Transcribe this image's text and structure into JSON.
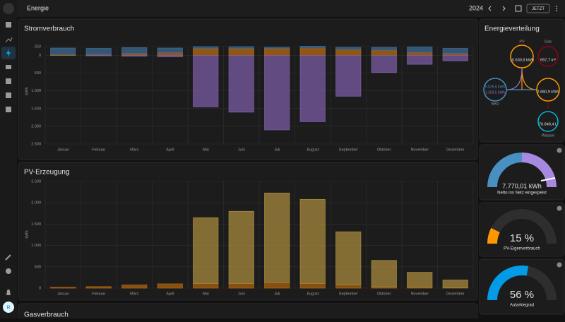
{
  "header": {
    "title": "Energie",
    "year": "2024",
    "button": "JETZT"
  },
  "user": {
    "initial": "R"
  },
  "chart_data": [
    {
      "type": "bar",
      "title": "Stromverbrauch",
      "y_label": "kWh",
      "categories": [
        "Januar",
        "Februar",
        "März",
        "April",
        "Mai",
        "Juni",
        "Juli",
        "August",
        "September",
        "Oktober",
        "November",
        "Dezember"
      ],
      "ylim": [
        -2500,
        250
      ],
      "yticks": [
        250,
        0,
        {
          "value": -500,
          "label": "500"
        },
        {
          "value": -1000,
          "label": "1.000"
        },
        {
          "value": -1500,
          "label": "1.500"
        },
        {
          "value": -2000,
          "label": "2.000"
        },
        {
          "value": -2500,
          "label": "2.500"
        }
      ],
      "grid": true,
      "series": [
        {
          "color": "#b8690f",
          "values": [
            20,
            30,
            60,
            80,
            200,
            200,
            200,
            210,
            170,
            150,
            90,
            60
          ]
        },
        {
          "color": "#3d6a93",
          "values": [
            190,
            170,
            160,
            130,
            50,
            50,
            30,
            50,
            60,
            80,
            150,
            140
          ]
        },
        {
          "color": "#7a5ba3",
          "values": [
            0,
            -10,
            -20,
            -40,
            -1450,
            -1600,
            -2100,
            -1870,
            -1150,
            -480,
            -250,
            -150
          ]
        }
      ]
    },
    {
      "type": "bar",
      "title": "PV-Erzeugung",
      "y_label": "kWh",
      "categories": [
        "Januar",
        "Februar",
        "März",
        "April",
        "Mai",
        "Juni",
        "Juli",
        "August",
        "September",
        "Oktober",
        "November",
        "Dezember"
      ],
      "ylim": [
        0,
        2500
      ],
      "yticks": [
        0,
        500,
        {
          "value": 1000,
          "label": "1.000"
        },
        {
          "value": 1500,
          "label": "1.500"
        },
        {
          "value": 2000,
          "label": "2.000"
        },
        {
          "value": 2500,
          "label": "2.500"
        }
      ],
      "grid": true,
      "series": [
        {
          "color": "#a9620f",
          "values": [
            20,
            35,
            75,
            100,
            110,
            110,
            130,
            110,
            80,
            30,
            20,
            10
          ]
        },
        {
          "color": "#a5883c",
          "values": [
            0,
            0,
            0,
            0,
            1540,
            1690,
            2100,
            1970,
            1240,
            620,
            350,
            180
          ]
        }
      ]
    },
    {
      "type": "bar",
      "title": "Gasverbrauch"
    }
  ],
  "energy_distribution": {
    "title": "Energieverteilung",
    "pv": {
      "label": "PV",
      "value": "10.630,9 kWh"
    },
    "gas": {
      "label": "Gas",
      "value": "657,7 m³"
    },
    "grid": {
      "label": "Netz",
      "in": "9.029,5 kWh",
      "out": "1.259,5 kWh"
    },
    "home": {
      "value": "2.860,9 kWh"
    },
    "water": {
      "label": "Wasser",
      "value": "76.848,4 L"
    }
  },
  "gauges": [
    {
      "value_label": "7.770,01 kWh",
      "label": "Netto ins Netz eingespeist"
    },
    {
      "value": 15,
      "value_label": "15 %",
      "label": "PV-Eigenverbrauch",
      "range": [
        0,
        100
      ],
      "color": "#ff9800"
    },
    {
      "value": 56,
      "value_label": "56 %",
      "label": "Autarkiegrad",
      "range": [
        0,
        100
      ],
      "color": "#039be5"
    }
  ]
}
